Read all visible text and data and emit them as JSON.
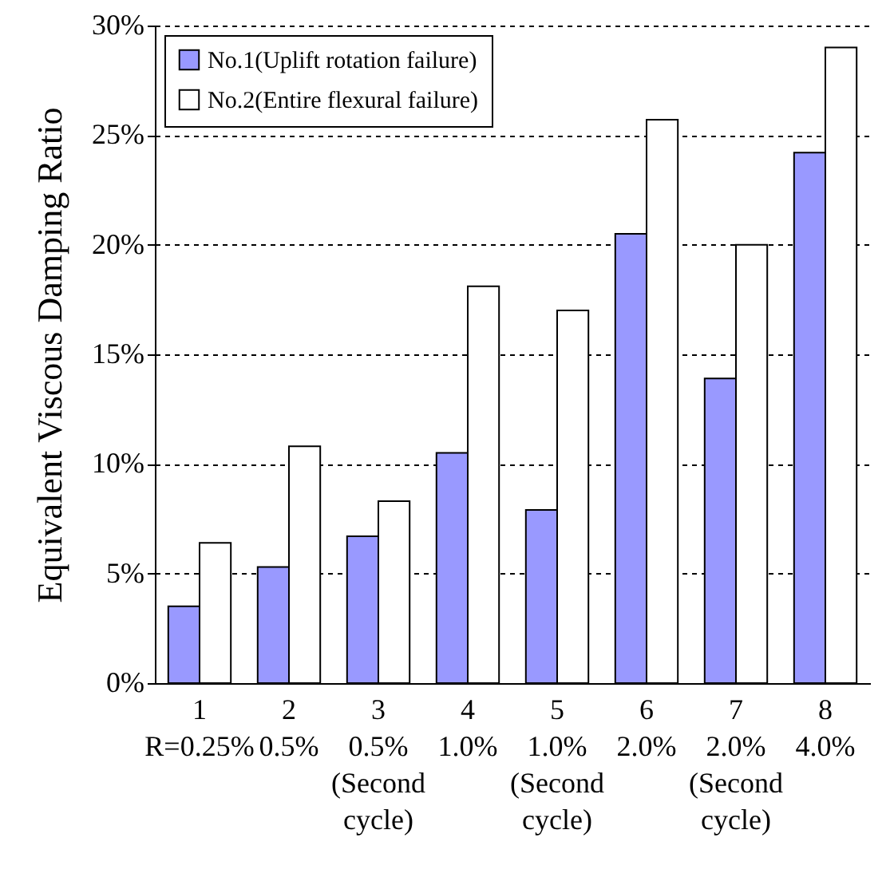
{
  "chart_data": {
    "type": "bar",
    "ylabel": "Equivalent Viscous Damping Ratio",
    "categories": [
      "1\nR=0.25%",
      "2\n0.5%",
      "3\n0.5%\n(Second\ncycle)",
      "4\n1.0%",
      "5\n1.0%\n(Second\ncycle)",
      "6\n2.0%",
      "7\n2.0%\n(Second\ncycle)",
      "8\n4.0%"
    ],
    "series": [
      {
        "name": "No.1(Uplift rotation failure)",
        "color": "#9999ff",
        "values": [
          3.5,
          5.3,
          6.7,
          10.5,
          7.9,
          20.5,
          13.9,
          24.2
        ]
      },
      {
        "name": "No.2(Entire flexural failure)",
        "color": "#ffffff",
        "values": [
          6.4,
          10.8,
          8.3,
          18.1,
          17.0,
          25.7,
          20.0,
          29.0
        ]
      }
    ],
    "ylim": [
      0,
      30
    ],
    "yticks": [
      {
        "value": 0,
        "label": "0%"
      },
      {
        "value": 5,
        "label": "5%"
      },
      {
        "value": 10,
        "label": "10%"
      },
      {
        "value": 15,
        "label": "15%"
      },
      {
        "value": 20,
        "label": "20%"
      },
      {
        "value": 25,
        "label": "25%"
      },
      {
        "value": 30,
        "label": "30%"
      }
    ],
    "grid": "y",
    "legend": "top left"
  }
}
